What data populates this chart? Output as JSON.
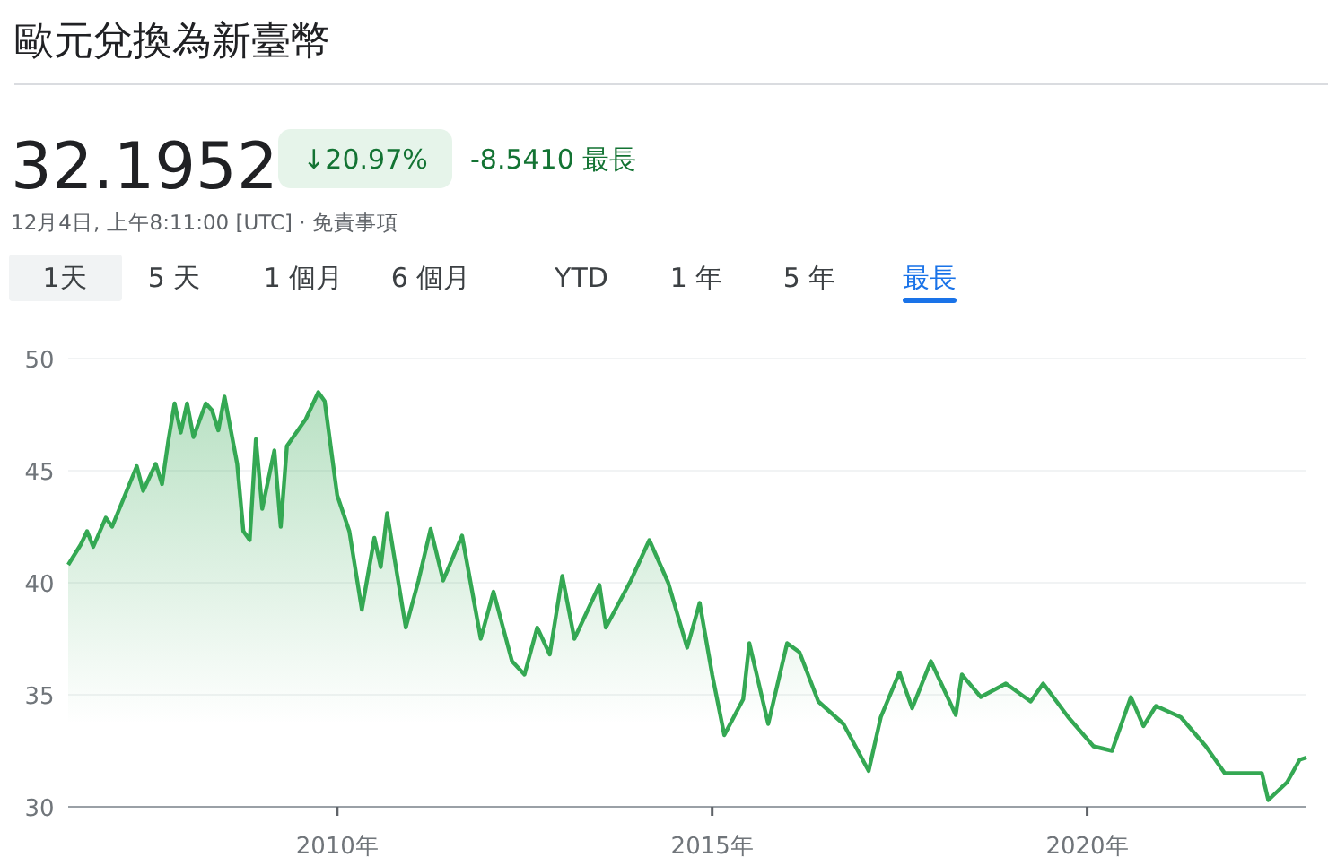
{
  "chart_data": {
    "type": "area",
    "title": "歐元兌換為新臺幣",
    "annotations": [
      "32.1952",
      "↓20.97%",
      "-8.5410 最長",
      "12月4日, 上午8:11:00 [UTC] · 免責事項",
      "1天",
      "5 天",
      "1 個月",
      "6 個月",
      "YTD",
      "1 年",
      "5 年",
      "最長"
    ],
    "xlim": [
      "2006-06",
      "2022-12-04"
    ],
    "ylim": [
      30,
      50
    ],
    "xticks": [
      {
        "value": "2010-01-01",
        "label": "2010年"
      },
      {
        "value": "2015-01-01",
        "label": "2015年"
      },
      {
        "value": "2020-01-01",
        "label": "2020年"
      }
    ],
    "yticks": [
      30,
      35,
      40,
      45,
      50
    ],
    "grid": "y",
    "series": [
      {
        "color": "#34a853",
        "x": [
          "2006-06",
          "2006-08",
          "2006-09",
          "2006-10",
          "2006-12",
          "2007-01",
          "2007-02",
          "2007-05",
          "2007-06",
          "2007-08",
          "2007-09",
          "2007-10",
          "2007-11",
          "2007-12",
          "2008-01",
          "2008-02",
          "2008-04",
          "2008-05",
          "2008-06",
          "2008-07",
          "2008-08",
          "2008-09",
          "2008-10",
          "2008-11",
          "2008-12",
          "2009-01",
          "2009-03",
          "2009-04",
          "2009-05",
          "2009-08",
          "2009-10",
          "2009-11",
          "2010-01",
          "2010-03",
          "2010-05",
          "2010-07",
          "2010-08",
          "2010-09",
          "2010-12",
          "2011-02",
          "2011-04",
          "2011-06",
          "2011-09",
          "2011-12",
          "2012-02",
          "2012-05",
          "2012-07",
          "2012-09",
          "2012-11",
          "2013-01",
          "2013-03",
          "2013-07",
          "2013-08",
          "2013-12",
          "2014-03",
          "2014-06",
          "2014-09",
          "2014-11",
          "2015-01",
          "2015-03",
          "2015-06",
          "2015-07",
          "2015-10",
          "2016-01",
          "2016-03",
          "2016-06",
          "2016-10",
          "2017-02",
          "2017-04",
          "2017-07",
          "2017-09",
          "2017-12",
          "2018-04",
          "2018-05",
          "2018-08",
          "2018-12",
          "2019-04",
          "2019-06",
          "2019-10",
          "2020-02",
          "2020-05",
          "2020-08",
          "2020-10",
          "2020-12",
          "2021-04",
          "2021-08",
          "2021-11",
          "2022-05",
          "2022-06",
          "2022-09",
          "2022-11",
          "2022-12-04"
        ],
        "values": [
          40.8,
          41.7,
          42.3,
          41.6,
          42.9,
          42.5,
          43.2,
          45.2,
          44.1,
          45.3,
          44.4,
          46.3,
          48.0,
          46.7,
          48.0,
          46.5,
          48.0,
          47.7,
          46.8,
          48.3,
          46.8,
          45.3,
          42.3,
          41.9,
          46.4,
          43.3,
          45.9,
          42.5,
          46.1,
          47.3,
          48.5,
          48.1,
          43.9,
          42.3,
          38.8,
          42.0,
          40.7,
          43.1,
          38.0,
          40.1,
          42.4,
          40.1,
          42.1,
          37.5,
          39.6,
          36.5,
          35.9,
          38.0,
          36.8,
          40.3,
          37.5,
          39.9,
          38.0,
          40.1,
          41.9,
          40.0,
          37.1,
          39.1,
          35.9,
          33.2,
          34.8,
          37.3,
          33.7,
          37.3,
          36.9,
          34.7,
          33.7,
          31.6,
          34.0,
          36.0,
          34.4,
          36.5,
          34.1,
          35.9,
          34.9,
          35.5,
          34.7,
          35.5,
          34.0,
          32.7,
          32.5,
          34.9,
          33.6,
          34.5,
          34.0,
          32.7,
          31.5,
          31.5,
          30.3,
          31.1,
          32.1,
          32.2
        ]
      }
    ]
  }
}
